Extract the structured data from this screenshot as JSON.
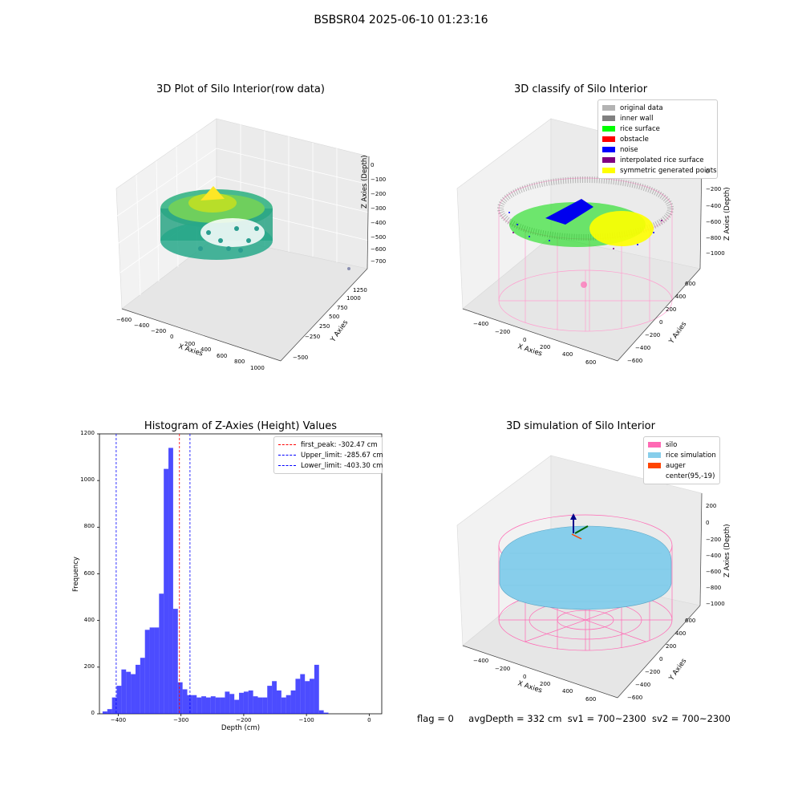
{
  "figure_title": "BSBSR04 2025-06-10 01:23:16",
  "footer": {
    "flag": "flag = 0",
    "avg_depth": "avgDepth = 332 cm",
    "sv1": "sv1 = 700~2300",
    "sv2": "sv2 = 700~2300"
  },
  "plot1": {
    "title": "3D Plot of Silo Interior(row data)",
    "xlabel": "X Axies",
    "ylabel": "Y Axies",
    "zlabel": "Z Axies (Depth)",
    "xticks": [
      "−600",
      "−400",
      "−200",
      "0",
      "200",
      "400",
      "600",
      "800",
      "1000"
    ],
    "yticks": [
      "−500",
      "−250",
      "0",
      "250",
      "500",
      "750",
      "1000",
      "1250"
    ],
    "zticks": [
      "0",
      "−100",
      "−200",
      "−300",
      "−400",
      "−500",
      "−600",
      "−700"
    ]
  },
  "plot2": {
    "title": "3D classify of Silo Interior",
    "xlabel": "X Axies",
    "ylabel": "Y Axies",
    "zlabel": "Z Axies (Depth)",
    "xticks": [
      "−400",
      "−200",
      "0",
      "200",
      "400",
      "600"
    ],
    "yticks": [
      "−600",
      "−400",
      "−200",
      "0",
      "200",
      "400",
      "600"
    ],
    "zticks": [
      "0",
      "−200",
      "−400",
      "−600",
      "−800",
      "−1000"
    ],
    "legend": [
      {
        "label": "original data",
        "color": "#b3b3b3"
      },
      {
        "label": "inner wall",
        "color": "#808080"
      },
      {
        "label": "rice surface",
        "color": "#00ff00"
      },
      {
        "label": "obstacle",
        "color": "#ff0000"
      },
      {
        "label": "noise",
        "color": "#0000ff"
      },
      {
        "label": "interpolated rice surface",
        "color": "#800080"
      },
      {
        "label": "symmetric generated points",
        "color": "#ffff00"
      }
    ]
  },
  "plot4": {
    "title": "3D simulation of Silo Interior",
    "xlabel": "X Axies",
    "ylabel": "Y Axies",
    "zlabel": "Z Axies (Depth)",
    "xticks": [
      "−400",
      "−200",
      "0",
      "200",
      "400",
      "600"
    ],
    "yticks": [
      "−600",
      "−400",
      "−200",
      "0",
      "200",
      "400",
      "600"
    ],
    "zticks": [
      "200",
      "0",
      "−200",
      "−400",
      "−600",
      "−800",
      "−1000"
    ],
    "legend": [
      {
        "label": "silo",
        "color": "#ff69b4"
      },
      {
        "label": "rice simulation",
        "color": "#87ceeb"
      },
      {
        "label": "auger",
        "color": "#ff4500"
      },
      {
        "label": "center(95,-19)",
        "color": "#ffffff"
      }
    ]
  },
  "chart_data": [
    {
      "type": "bar",
      "title": "Histogram of Z-Axies (Height) Values",
      "xlabel": "Depth (cm)",
      "ylabel": "Frequency",
      "xlim": [
        -430,
        20
      ],
      "ylim": [
        0,
        1200
      ],
      "xticks": [
        -400,
        -300,
        -200,
        -100,
        0
      ],
      "yticks": [
        0,
        200,
        400,
        600,
        800,
        1000,
        1200
      ],
      "bar_color": "#0000ff",
      "bin_width": 7.5,
      "bins": [
        [
          -425.0,
          10
        ],
        [
          -417.5,
          20
        ],
        [
          -410.0,
          70
        ],
        [
          -402.5,
          120
        ],
        [
          -395.0,
          190
        ],
        [
          -387.5,
          180
        ],
        [
          -380.0,
          170
        ],
        [
          -372.5,
          210
        ],
        [
          -365.0,
          240
        ],
        [
          -357.5,
          360
        ],
        [
          -350.0,
          370
        ],
        [
          -342.5,
          370
        ],
        [
          -335.0,
          515
        ],
        [
          -327.5,
          1050
        ],
        [
          -320.0,
          1140
        ],
        [
          -312.5,
          450
        ],
        [
          -305.0,
          135
        ],
        [
          -297.5,
          105
        ],
        [
          -290.0,
          80
        ],
        [
          -282.5,
          80
        ],
        [
          -275.0,
          70
        ],
        [
          -267.5,
          75
        ],
        [
          -260.0,
          70
        ],
        [
          -252.5,
          75
        ],
        [
          -245.0,
          70
        ],
        [
          -237.5,
          70
        ],
        [
          -230.0,
          95
        ],
        [
          -222.5,
          85
        ],
        [
          -215.0,
          60
        ],
        [
          -207.5,
          90
        ],
        [
          -200.0,
          95
        ],
        [
          -192.5,
          100
        ],
        [
          -185.0,
          75
        ],
        [
          -177.5,
          70
        ],
        [
          -170.0,
          70
        ],
        [
          -162.5,
          120
        ],
        [
          -155.0,
          140
        ],
        [
          -147.5,
          100
        ],
        [
          -140.0,
          70
        ],
        [
          -132.5,
          80
        ],
        [
          -125.0,
          100
        ],
        [
          -117.5,
          150
        ],
        [
          -110.0,
          170
        ],
        [
          -102.5,
          140
        ],
        [
          -95.0,
          150
        ],
        [
          -87.5,
          210
        ],
        [
          -80.0,
          15
        ],
        [
          -72.5,
          5
        ]
      ],
      "lines": [
        {
          "label": "first_peak: -302.47 cm",
          "x": -302.47,
          "color": "#ff0000"
        },
        {
          "label": "Upper_limit: -285.67 cm",
          "x": -285.67,
          "color": "#0000ff"
        },
        {
          "label": "Lower_limit: -403.30 cm",
          "x": -403.3,
          "color": "#0000ff"
        }
      ]
    }
  ]
}
